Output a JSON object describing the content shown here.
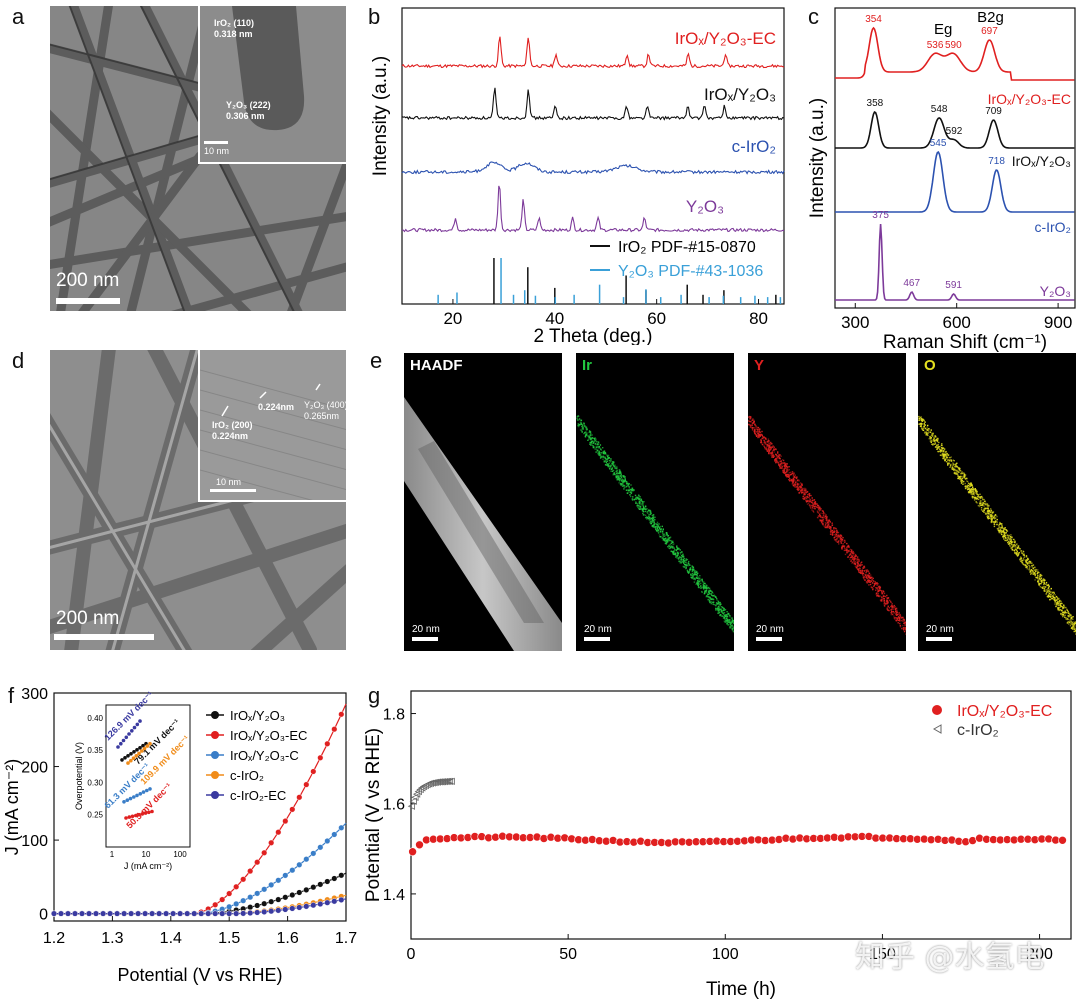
{
  "figure": {
    "labels": {
      "a": "a",
      "b": "b",
      "c": "c",
      "d": "d",
      "e": "e",
      "f": "f",
      "g": "g"
    },
    "watermark": "知乎 @水氢电"
  },
  "panel_a": {
    "scale": "200 nm",
    "inset_scale": "10 nm",
    "inset_text1": "IrO₂ (110)\n0.318 nm",
    "inset_text2": "Y₂O₃ (222)\n0.306 nm"
  },
  "panel_d": {
    "scale": "200 nm",
    "inset_scale": "10 nm",
    "inset_text1": "0.224nm",
    "inset_text2": "IrO₂ (200)\n0.224nm",
    "inset_text3": "Y₂O₃ (400)\n0.265nm"
  },
  "panel_e": {
    "maps": [
      {
        "label": "HAADF",
        "scale": "20 nm",
        "color": "#ffffff"
      },
      {
        "label": "Ir",
        "scale": "20 nm",
        "color": "#22c840"
      },
      {
        "label": "Y",
        "scale": "20 nm",
        "color": "#e02020"
      },
      {
        "label": "O",
        "scale": "20 nm",
        "color": "#e4e020"
      }
    ]
  },
  "chart_data": [
    {
      "panel": "b",
      "type": "line",
      "xlabel": "2 Theta (deg.)",
      "ylabel": "Intensity (a.u.)",
      "xlim": [
        10,
        85
      ],
      "xticks": [
        20,
        40,
        60,
        80
      ],
      "series": [
        {
          "name": "IrOx/Y2O3-EC",
          "label": "IrOₓ/Y₂O₃-EC",
          "color": "#e02020"
        },
        {
          "name": "IrOx/Y2O3",
          "label": "IrOₓ/Y₂O₃",
          "color": "#111111"
        },
        {
          "name": "c-IrO2",
          "label": "c-IrO₂",
          "color": "#2c52b0"
        },
        {
          "name": "Y2O3",
          "label": "Y₂O₃",
          "color": "#7d3a9a"
        }
      ],
      "peaks": {
        "IrOx/Y2O3-EC": [
          29.2,
          34.8,
          40.2,
          54.2,
          58.4,
          66.2,
          73.5
        ],
        "IrOx/Y2O3": [
          28.2,
          34.8,
          40.1,
          54.1,
          58.2,
          66.1,
          69.4,
          73.3
        ],
        "c-IrO2": [
          28.0,
          34.4,
          54.0
        ],
        "Y2O3": [
          29.1,
          33.8,
          48.5,
          57.6,
          20.5,
          36.9,
          43.5
        ]
      },
      "ref": {
        "IrO2_label": "IrO₂   PDF-#15-0870",
        "Y2O3_label": "Y₂O₃  PDF-#43-1036",
        "IrO2_lines": [
          [
            28.05,
            1.0
          ],
          [
            34.7,
            0.8
          ],
          [
            40.0,
            0.35
          ],
          [
            54.0,
            0.62
          ],
          [
            57.9,
            0.3
          ],
          [
            66.0,
            0.42
          ],
          [
            69.1,
            0.2
          ],
          [
            73.2,
            0.3
          ],
          [
            83.4,
            0.2
          ]
        ],
        "Y2O3_lines": [
          [
            16.8,
            0.2
          ],
          [
            20.5,
            0.25
          ],
          [
            29.15,
            1.0
          ],
          [
            31.6,
            0.2
          ],
          [
            33.8,
            0.3
          ],
          [
            35.9,
            0.18
          ],
          [
            39.8,
            0.15
          ],
          [
            43.5,
            0.2
          ],
          [
            48.5,
            0.42
          ],
          [
            53.2,
            0.15
          ],
          [
            57.6,
            0.32
          ],
          [
            60.5,
            0.15
          ],
          [
            64.5,
            0.2
          ],
          [
            70.0,
            0.15
          ],
          [
            72.8,
            0.18
          ],
          [
            76.2,
            0.15
          ],
          [
            79.0,
            0.18
          ],
          [
            81.5,
            0.15
          ],
          [
            84.0,
            0.15
          ]
        ]
      }
    },
    {
      "panel": "c",
      "type": "line",
      "xlabel": "Raman Shift (cm⁻¹)",
      "ylabel": "Intensity (a.u.)",
      "xlim": [
        240,
        950
      ],
      "xticks": [
        300,
        600,
        900
      ],
      "annotations": [
        "Eg",
        "B2g"
      ],
      "series": [
        {
          "name": "IrOx/Y2O3-EC",
          "label": "IrOₓ/Y₂O₃-EC",
          "color": "#e02020",
          "peaks": [
            354,
            536,
            590,
            697
          ],
          "peak_labels": [
            "354",
            "536",
            "590",
            "697"
          ]
        },
        {
          "name": "IrOx/Y2O3",
          "label": "IrOₓ/Y₂O₃",
          "color": "#111111",
          "peaks": [
            358,
            548,
            592,
            709
          ],
          "peak_labels": [
            "358",
            "548",
            "592",
            "709"
          ]
        },
        {
          "name": "c-IrO2",
          "label": "c-IrO₂",
          "color": "#2c52b0",
          "peaks": [
            545,
            718
          ],
          "peak_labels": [
            "545",
            "718"
          ]
        },
        {
          "name": "Y2O3",
          "label": "Y₂O₃",
          "color": "#7d3a9a",
          "peaks": [
            375,
            467,
            591
          ],
          "peak_labels": [
            "375",
            "467",
            "591"
          ]
        }
      ]
    },
    {
      "panel": "f",
      "type": "line",
      "xlabel": "Potential (V vs RHE)",
      "ylabel": "J (mA cm⁻²)",
      "xlim": [
        1.2,
        1.7
      ],
      "ylim": [
        -10,
        300
      ],
      "xticks": [
        "1.2",
        "1.3",
        "1.4",
        "1.5",
        "1.6",
        "1.7"
      ],
      "yticks": [
        "0",
        "100",
        "200",
        "300"
      ],
      "series": [
        {
          "name": "IrOx/Y2O3",
          "label": "IrOₓ/Y₂O₃",
          "color": "#111111",
          "onset": 1.46,
          "end_value": 55
        },
        {
          "name": "IrOx/Y2O3-EC",
          "label": "IrOₓ/Y₂O₃-EC",
          "color": "#e02020",
          "onset": 1.44,
          "end_value": 285
        },
        {
          "name": "IrOx/Y2O3-C",
          "label": "IrOₓ/Y₂O₃-C",
          "color": "#3a7ec8",
          "onset": 1.45,
          "end_value": 123
        },
        {
          "name": "c-IrO2",
          "label": "c-IrO₂",
          "color": "#f08c1a",
          "onset": 1.5,
          "end_value": 25
        },
        {
          "name": "c-IrO2-EC",
          "label": "c-IrO₂-EC",
          "color": "#3a3aa0",
          "onset": 1.51,
          "end_value": 20
        }
      ],
      "inset": {
        "xlabel": "J (mA cm⁻²)",
        "ylabel": "Overpotential (V)",
        "ylim": [
          0.2,
          0.42
        ],
        "yticks": [
          "0.25",
          "0.30",
          "0.35",
          "0.40"
        ],
        "xticks": [
          "1",
          "10",
          "100"
        ],
        "tafel": [
          {
            "label": "126.9 mV dec⁻¹",
            "color": "#3a3aa0"
          },
          {
            "label": "79.1 mV dec⁻¹",
            "color": "#111111"
          },
          {
            "label": "109.9 mV dec⁻¹",
            "color": "#f08c1a"
          },
          {
            "label": "61.3 mV dec⁻¹",
            "color": "#3a7ec8"
          },
          {
            "label": "50.5 mV dec⁻¹",
            "color": "#e02020"
          }
        ]
      }
    },
    {
      "panel": "g",
      "type": "scatter",
      "xlabel": "Time (h)",
      "ylabel": "Potential (V vs RHE)",
      "xlim": [
        0,
        210
      ],
      "ylim": [
        1.3,
        1.85
      ],
      "xticks": [
        "0",
        "50",
        "100",
        "150",
        "200"
      ],
      "yticks": [
        "1.4",
        "1.6",
        "1.8"
      ],
      "series": [
        {
          "name": "IrOx/Y2O3-EC",
          "label": "IrOₓ/Y₂O₃-EC",
          "color": "#e02020",
          "t_end": 208,
          "value": 1.52
        },
        {
          "name": "c-IrO2",
          "label": "c-IrO₂",
          "color": "#444444",
          "t_end": 13,
          "start": 1.59,
          "value": 1.65
        }
      ]
    }
  ]
}
